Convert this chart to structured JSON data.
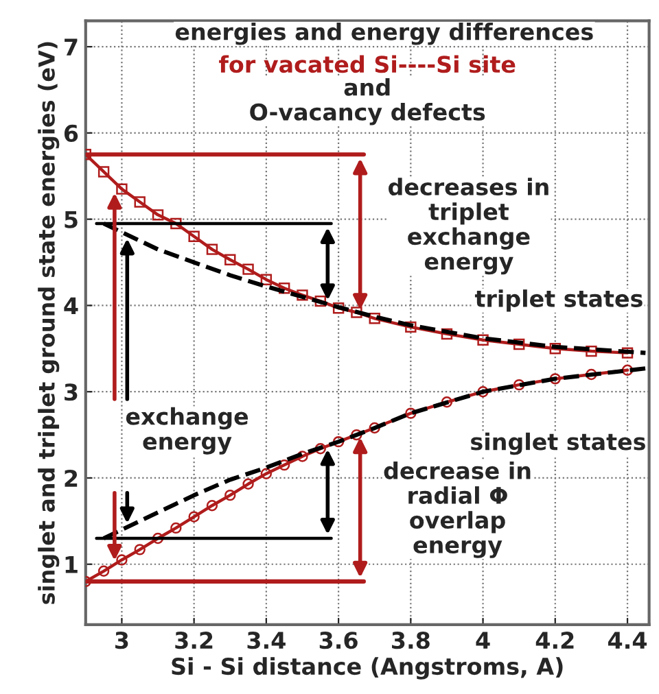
{
  "chart_data": {
    "type": "line",
    "title": "energies and energy differences",
    "subtitle": "for vacated Si----Si site",
    "xlabel": "Si - Si distance (Angstroms, A)",
    "ylabel": "singlet and triplet ground state energies (eV)",
    "xlim": [
      2.9,
      4.46
    ],
    "ylim": [
      0.3,
      7.3
    ],
    "xticks": [
      3,
      3.2,
      3.4,
      3.6,
      3.8,
      4,
      4.2,
      4.4
    ],
    "yticks": [
      1,
      2,
      3,
      4,
      5,
      6,
      7
    ],
    "grid": true,
    "series": [
      {
        "color": "#b01c1c",
        "marker": "square",
        "line_style": "solid",
        "x": [
          2.9,
          2.95,
          3.0,
          3.05,
          3.1,
          3.15,
          3.2,
          3.25,
          3.3,
          3.35,
          3.4,
          3.45,
          3.5,
          3.55,
          3.6,
          3.65,
          3.7,
          3.8,
          3.9,
          4.0,
          4.1,
          4.2,
          4.3,
          4.4
        ],
        "values": [
          5.75,
          5.55,
          5.35,
          5.2,
          5.05,
          4.95,
          4.8,
          4.65,
          4.53,
          4.42,
          4.3,
          4.2,
          4.12,
          4.05,
          3.97,
          3.92,
          3.85,
          3.75,
          3.67,
          3.6,
          3.55,
          3.5,
          3.47,
          3.45
        ]
      },
      {
        "color": "#000000",
        "marker": "none",
        "line_style": "dashed",
        "x": [
          2.95,
          3.0,
          3.1,
          3.2,
          3.3,
          3.4,
          3.5,
          3.6,
          3.7,
          3.8,
          4.0,
          4.2,
          4.45
        ],
        "values": [
          4.95,
          4.85,
          4.65,
          4.5,
          4.35,
          4.22,
          4.1,
          3.98,
          3.87,
          3.77,
          3.62,
          3.52,
          3.45
        ]
      },
      {
        "color": "#b01c1c",
        "marker": "circle",
        "line_style": "solid",
        "x": [
          2.9,
          2.95,
          3.0,
          3.05,
          3.1,
          3.15,
          3.2,
          3.25,
          3.3,
          3.35,
          3.4,
          3.45,
          3.5,
          3.55,
          3.6,
          3.65,
          3.7,
          3.8,
          3.9,
          4.0,
          4.1,
          4.2,
          4.3,
          4.4
        ],
        "values": [
          0.8,
          0.92,
          1.05,
          1.17,
          1.3,
          1.42,
          1.55,
          1.68,
          1.8,
          1.93,
          2.05,
          2.15,
          2.25,
          2.34,
          2.42,
          2.5,
          2.58,
          2.75,
          2.88,
          3.0,
          3.08,
          3.15,
          3.2,
          3.25
        ]
      },
      {
        "color": "#000000",
        "marker": "none",
        "line_style": "dashed",
        "x": [
          2.95,
          3.0,
          3.1,
          3.2,
          3.3,
          3.4,
          3.5,
          3.6,
          3.7,
          3.8,
          4.0,
          4.2,
          4.45
        ],
        "values": [
          1.3,
          1.4,
          1.6,
          1.8,
          1.98,
          2.12,
          2.28,
          2.42,
          2.58,
          2.75,
          3.0,
          3.15,
          3.27
        ]
      },
      {
        "color": "#b01c1c",
        "marker": "none",
        "line_style": "solid",
        "x": [
          2.9,
          3.67
        ],
        "values": [
          5.75,
          5.75
        ]
      },
      {
        "color": "#000000",
        "marker": "none",
        "line_style": "solid",
        "x": [
          2.93,
          3.58
        ],
        "values": [
          4.95,
          4.95
        ]
      },
      {
        "color": "#b01c1c",
        "marker": "none",
        "line_style": "solid",
        "x": [
          2.9,
          3.67
        ],
        "values": [
          0.8,
          0.8
        ]
      },
      {
        "color": "#000000",
        "marker": "none",
        "line_style": "solid",
        "x": [
          2.93,
          3.58
        ],
        "values": [
          1.3,
          1.3
        ]
      }
    ],
    "annotations": [
      "and\nO-vacancy defects",
      "decreases in\ntriplet\nexchange\nenergy",
      "triplet states",
      {
        "text": "exchange\nenergy",
        "x": 3.0,
        "y": 5.35
      },
      "singlet states",
      "decrease in\nradial Φ\noverlap\nenergy"
    ]
  }
}
